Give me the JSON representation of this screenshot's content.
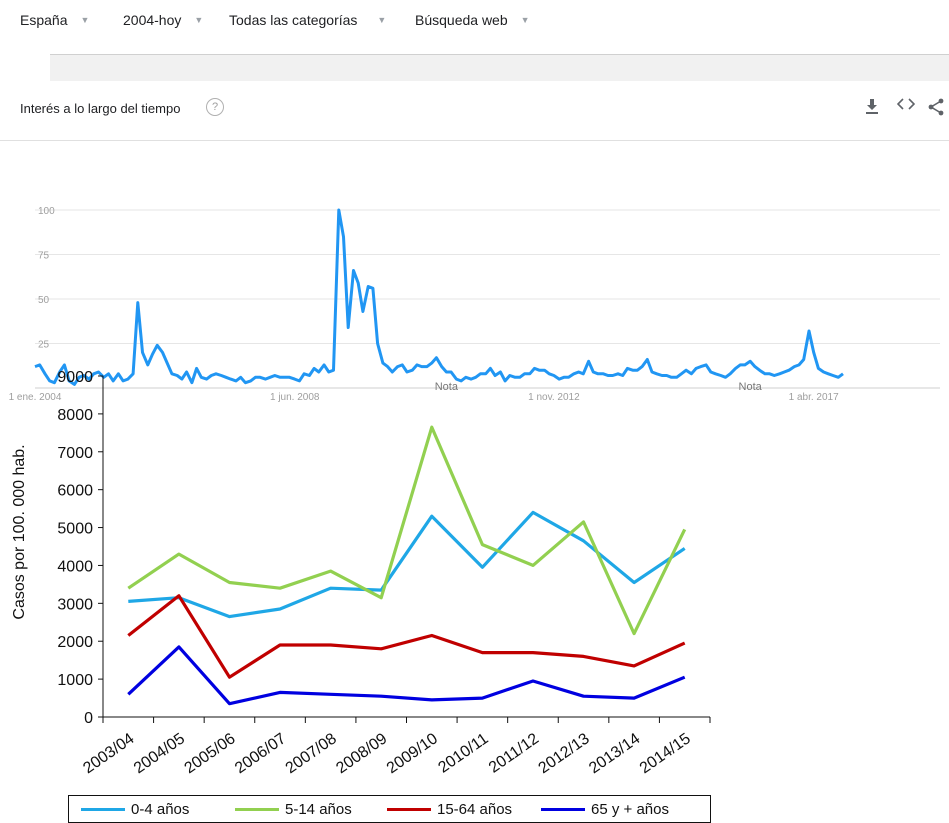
{
  "filters": {
    "region": "España",
    "period": "2004-hoy",
    "category": "Todas las categorías",
    "search_type": "Búsqueda web"
  },
  "section": {
    "title": "Interés a lo largo del tiempo",
    "help_icon": "help-circle-icon",
    "download_icon": "download-icon",
    "embed_icon": "embed-code-icon",
    "share_icon": "share-icon"
  },
  "chart_data": [
    {
      "type": "line",
      "title": "",
      "x_range": [
        "2004-01",
        "2020-12"
      ],
      "ylim": [
        0,
        100
      ],
      "y_ticks": [
        "100",
        "75",
        "50",
        "25"
      ],
      "x_tick_labels": [
        "1 ene. 2004",
        "1 jun. 2008",
        "1 nov. 2012",
        "1 abr. 2017"
      ],
      "annotations": [
        "Nota",
        "Nota"
      ],
      "grid": true,
      "series": [
        {
          "color": "#2196f3",
          "points": [
            [
              2004.0,
              12
            ],
            [
              2004.08,
              13
            ],
            [
              2004.17,
              8
            ],
            [
              2004.25,
              4
            ],
            [
              2004.33,
              3
            ],
            [
              2004.42,
              9
            ],
            [
              2004.5,
              13
            ],
            [
              2004.58,
              4
            ],
            [
              2004.67,
              2
            ],
            [
              2004.75,
              6
            ],
            [
              2004.83,
              7
            ],
            [
              2004.92,
              5
            ],
            [
              2005.0,
              8
            ],
            [
              2005.08,
              9
            ],
            [
              2005.17,
              6
            ],
            [
              2005.25,
              8
            ],
            [
              2005.33,
              4
            ],
            [
              2005.42,
              8
            ],
            [
              2005.5,
              4
            ],
            [
              2005.58,
              5
            ],
            [
              2005.67,
              8
            ],
            [
              2005.75,
              48
            ],
            [
              2005.83,
              20
            ],
            [
              2005.92,
              13
            ],
            [
              2006.0,
              19
            ],
            [
              2006.08,
              24
            ],
            [
              2006.17,
              20
            ],
            [
              2006.25,
              14
            ],
            [
              2006.33,
              8
            ],
            [
              2006.42,
              7
            ],
            [
              2006.5,
              5
            ],
            [
              2006.58,
              9
            ],
            [
              2006.67,
              3
            ],
            [
              2006.75,
              11
            ],
            [
              2006.83,
              6
            ],
            [
              2006.92,
              5
            ],
            [
              2007.0,
              7
            ],
            [
              2007.08,
              8
            ],
            [
              2007.17,
              7
            ],
            [
              2007.25,
              6
            ],
            [
              2007.33,
              5
            ],
            [
              2007.42,
              4
            ],
            [
              2007.5,
              6
            ],
            [
              2007.58,
              3
            ],
            [
              2007.67,
              4
            ],
            [
              2007.75,
              6
            ],
            [
              2007.83,
              6
            ],
            [
              2007.92,
              5
            ],
            [
              2008.0,
              6
            ],
            [
              2008.08,
              7
            ],
            [
              2008.17,
              6
            ],
            [
              2008.25,
              6
            ],
            [
              2008.33,
              6
            ],
            [
              2008.42,
              5
            ],
            [
              2008.5,
              4
            ],
            [
              2008.58,
              8
            ],
            [
              2008.67,
              7
            ],
            [
              2008.75,
              11
            ],
            [
              2008.83,
              9
            ],
            [
              2008.92,
              13
            ],
            [
              2009.0,
              9
            ],
            [
              2009.08,
              10
            ],
            [
              2009.17,
              100
            ],
            [
              2009.25,
              85
            ],
            [
              2009.33,
              34
            ],
            [
              2009.42,
              66
            ],
            [
              2009.5,
              59
            ],
            [
              2009.58,
              43
            ],
            [
              2009.67,
              57
            ],
            [
              2009.75,
              56
            ],
            [
              2009.83,
              25
            ],
            [
              2009.92,
              14
            ],
            [
              2010.0,
              12
            ],
            [
              2010.08,
              9
            ],
            [
              2010.17,
              12
            ],
            [
              2010.25,
              13
            ],
            [
              2010.33,
              9
            ],
            [
              2010.42,
              10
            ],
            [
              2010.5,
              13
            ],
            [
              2010.58,
              12
            ],
            [
              2010.67,
              12
            ],
            [
              2010.75,
              14
            ],
            [
              2010.83,
              17
            ],
            [
              2010.92,
              12
            ],
            [
              2011.0,
              9
            ],
            [
              2011.08,
              9
            ],
            [
              2011.17,
              5
            ],
            [
              2011.25,
              4
            ],
            [
              2011.33,
              6
            ],
            [
              2011.42,
              5
            ],
            [
              2011.5,
              6
            ],
            [
              2011.58,
              8
            ],
            [
              2011.67,
              8
            ],
            [
              2011.75,
              11
            ],
            [
              2011.83,
              7
            ],
            [
              2011.92,
              9
            ],
            [
              2012.0,
              4
            ],
            [
              2012.08,
              7
            ],
            [
              2012.17,
              6
            ],
            [
              2012.25,
              6
            ],
            [
              2012.33,
              8
            ],
            [
              2012.42,
              8
            ],
            [
              2012.5,
              11
            ],
            [
              2012.58,
              10
            ],
            [
              2012.67,
              10
            ],
            [
              2012.75,
              8
            ],
            [
              2012.83,
              7
            ],
            [
              2012.92,
              5
            ],
            [
              2013.0,
              6
            ],
            [
              2013.08,
              6
            ],
            [
              2013.17,
              8
            ],
            [
              2013.25,
              9
            ],
            [
              2013.33,
              8
            ],
            [
              2013.42,
              15
            ],
            [
              2013.5,
              9
            ],
            [
              2013.58,
              8
            ],
            [
              2013.67,
              8
            ],
            [
              2013.75,
              7
            ],
            [
              2013.83,
              7
            ],
            [
              2013.92,
              8
            ],
            [
              2014.0,
              7
            ],
            [
              2014.08,
              11
            ],
            [
              2014.17,
              10
            ],
            [
              2014.25,
              10
            ],
            [
              2014.33,
              12
            ],
            [
              2014.42,
              16
            ],
            [
              2014.5,
              9
            ],
            [
              2014.58,
              8
            ],
            [
              2014.67,
              7
            ],
            [
              2014.75,
              7
            ],
            [
              2014.83,
              6
            ],
            [
              2014.92,
              6
            ],
            [
              2015.0,
              8
            ],
            [
              2015.08,
              10
            ],
            [
              2015.17,
              8
            ],
            [
              2015.25,
              11
            ],
            [
              2015.33,
              12
            ],
            [
              2015.42,
              13
            ],
            [
              2015.5,
              9
            ],
            [
              2015.58,
              8
            ],
            [
              2015.67,
              7
            ],
            [
              2015.75,
              6
            ],
            [
              2015.83,
              8
            ],
            [
              2015.92,
              11
            ],
            [
              2016.0,
              13
            ],
            [
              2016.08,
              13
            ],
            [
              2016.17,
              15
            ],
            [
              2016.25,
              12
            ],
            [
              2016.33,
              10
            ],
            [
              2016.42,
              8
            ],
            [
              2016.5,
              8
            ],
            [
              2016.58,
              7
            ],
            [
              2016.67,
              8
            ],
            [
              2016.75,
              9
            ],
            [
              2016.83,
              10
            ],
            [
              2016.92,
              12
            ],
            [
              2017.0,
              13
            ],
            [
              2017.08,
              16
            ],
            [
              2017.17,
              32
            ],
            [
              2017.25,
              20
            ],
            [
              2017.33,
              11
            ],
            [
              2017.42,
              9
            ],
            [
              2017.5,
              8
            ],
            [
              2017.58,
              7
            ],
            [
              2017.67,
              6
            ],
            [
              2017.75,
              8
            ]
          ]
        }
      ]
    },
    {
      "type": "line",
      "title": "",
      "xlabel": "",
      "ylabel": "Casos por 100. 000 hab.",
      "ylim": [
        0,
        9000
      ],
      "y_ticks": [
        0,
        1000,
        2000,
        3000,
        4000,
        5000,
        6000,
        7000,
        8000,
        9000
      ],
      "categories": [
        "2003/04",
        "2004/05",
        "2005/06",
        "2006/07",
        "2007/08",
        "2008/09",
        "2009/10",
        "2010/11",
        "2011/12",
        "2012/13",
        "2013/14",
        "2014/15"
      ],
      "legend_position": "bottom",
      "series": [
        {
          "name": "0-4 años",
          "color": "#1fa7e6",
          "values": [
            3050,
            3150,
            2650,
            2850,
            3400,
            3350,
            5300,
            3950,
            5400,
            4650,
            3550,
            4450
          ]
        },
        {
          "name": "5-14 años",
          "color": "#92d050",
          "values": [
            3400,
            4300,
            3550,
            3400,
            3850,
            3150,
            7650,
            4550,
            4000,
            5150,
            2200,
            4950
          ]
        },
        {
          "name": "15-64 años",
          "color": "#c00000",
          "values": [
            2150,
            3200,
            1050,
            1900,
            1900,
            1800,
            2150,
            1700,
            1700,
            1600,
            1350,
            1950
          ]
        },
        {
          "name": "65 y + años",
          "color": "#0000e0",
          "values": [
            600,
            1850,
            350,
            650,
            600,
            550,
            450,
            500,
            950,
            550,
            500,
            1050
          ]
        }
      ]
    }
  ]
}
